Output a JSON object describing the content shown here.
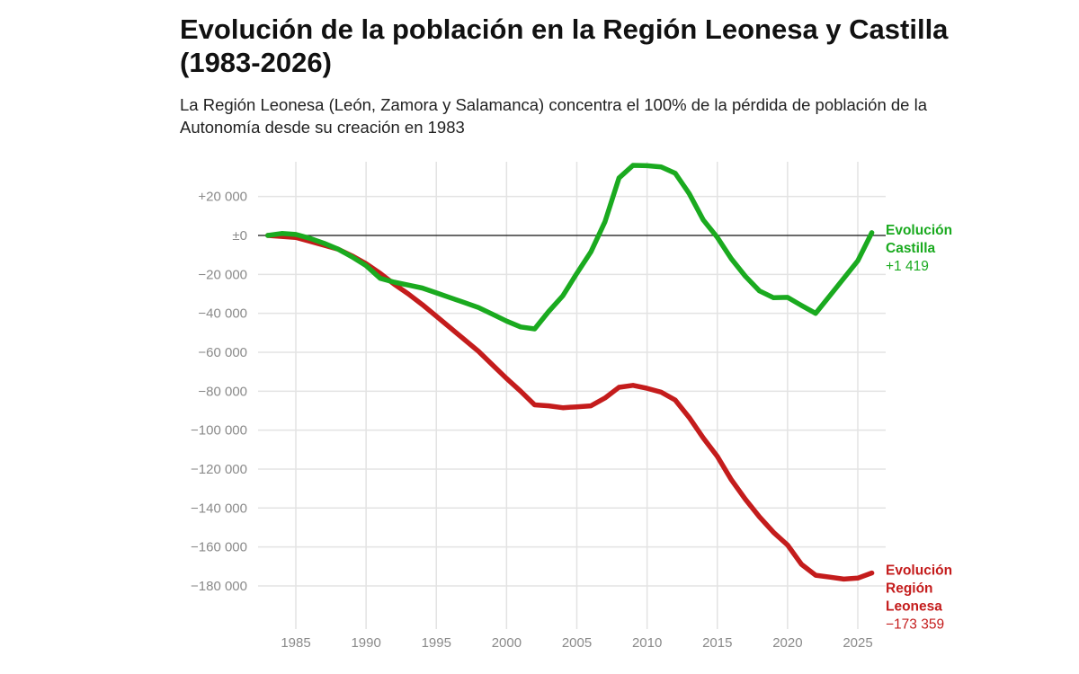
{
  "header": {
    "title": "Evolución de la población en la Región Leonesa y Castilla (1983-2026)",
    "subtitle": "La Región Leonesa (León, Zamora y Salamanca) concentra el 100% de la pérdida de población de la Autonomía desde su creación en 1983"
  },
  "chart_data": {
    "type": "line",
    "title": "Evolución de la población en la Región Leonesa y Castilla (1983-2026)",
    "xlabel": "",
    "ylabel": "",
    "xlim": [
      1983,
      2026
    ],
    "ylim": [
      -200000,
      38000
    ],
    "grid": true,
    "x_ticks": [
      1985,
      1990,
      1995,
      2000,
      2005,
      2010,
      2015,
      2020,
      2025
    ],
    "x_tick_labels": [
      "1985",
      "1990",
      "1995",
      "2000",
      "2005",
      "2010",
      "2015",
      "2020",
      "2025"
    ],
    "y_ticks": [
      20000,
      0,
      -20000,
      -40000,
      -60000,
      -80000,
      -100000,
      -120000,
      -140000,
      -160000,
      -180000
    ],
    "y_tick_labels": [
      "+20 000",
      "±0",
      "−20 000",
      "−40 000",
      "−60 000",
      "−80 000",
      "−100 000",
      "−120 000",
      "−140 000",
      "−160 000",
      "−180 000"
    ],
    "x": [
      1983,
      1984,
      1985,
      1986,
      1987,
      1988,
      1989,
      1990,
      1991,
      1992,
      1993,
      1994,
      1995,
      1996,
      1997,
      1998,
      1999,
      2000,
      2001,
      2002,
      2003,
      2004,
      2005,
      2006,
      2007,
      2008,
      2009,
      2010,
      2011,
      2012,
      2013,
      2014,
      2015,
      2016,
      2017,
      2018,
      2019,
      2020,
      2021,
      2022,
      2023,
      2024,
      2025,
      2026
    ],
    "series": [
      {
        "name": "Evolución Castilla",
        "label_lines": [
          "Evolución",
          "Castilla"
        ],
        "end_label": "+1 419",
        "color": "#1aaa1f",
        "values": [
          0,
          1000,
          500,
          -1500,
          -4000,
          -7000,
          -11000,
          -15500,
          -22000,
          -24000,
          -25500,
          -27000,
          -29500,
          -32000,
          -34500,
          -37000,
          -40500,
          -44000,
          -47000,
          -48000,
          -39000,
          -31000,
          -19500,
          -8500,
          7000,
          29500,
          36000,
          35800,
          35200,
          32000,
          21500,
          8000,
          -1000,
          -12000,
          -21000,
          -28500,
          -32000,
          -31800,
          -36000,
          -40000,
          -31000,
          -22000,
          -13000,
          1419
        ]
      },
      {
        "name": "Evolución Región Leonesa",
        "label_lines": [
          "Evolución",
          "Región",
          "Leonesa"
        ],
        "end_label": "−173 359",
        "color": "#c41c1c",
        "values": [
          0,
          -500,
          -1000,
          -3000,
          -5000,
          -7000,
          -10500,
          -14500,
          -19500,
          -25000,
          -30000,
          -35500,
          -41500,
          -47500,
          -53500,
          -59500,
          -66500,
          -73500,
          -80000,
          -87000,
          -87500,
          -88500,
          -88000,
          -87500,
          -83500,
          -78000,
          -77000,
          -78500,
          -80500,
          -84500,
          -93500,
          -104000,
          -113500,
          -125500,
          -135500,
          -144500,
          -152500,
          -159000,
          -169000,
          -174500,
          -175500,
          -176500,
          -176000,
          -173359
        ]
      }
    ]
  }
}
